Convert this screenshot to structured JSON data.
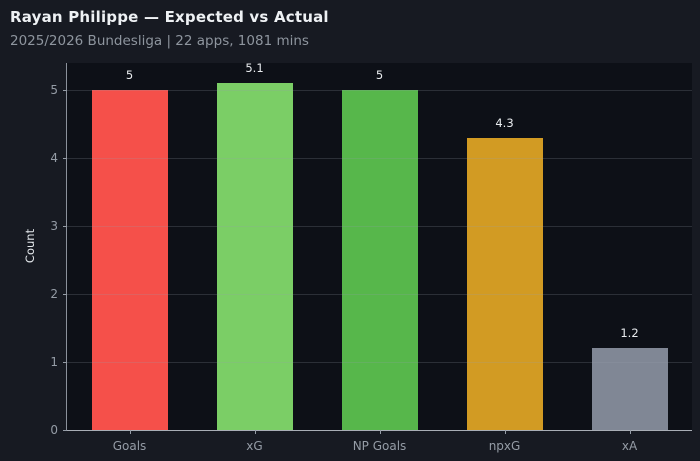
{
  "header": {
    "title": "Rayan Philippe — Expected vs Actual",
    "subtitle": "2025/2026 Bundesliga | 22 apps, 1081 mins"
  },
  "chart_data": {
    "type": "bar",
    "title": "Rayan Philippe — Expected vs Actual",
    "subtitle": "2025/2026 Bundesliga | 22 apps, 1081 mins",
    "categories": [
      "Goals",
      "xG",
      "NP Goals",
      "npxG",
      "xA"
    ],
    "values": [
      5,
      5.1,
      5,
      4.3,
      1.2
    ],
    "value_labels": [
      "5",
      "5.1",
      "5",
      "4.3",
      "1.2"
    ],
    "bar_colors": [
      "#f5504a",
      "#7bce66",
      "#57b74b",
      "#d29b23",
      "#808795"
    ],
    "xlabel": "",
    "ylabel": "Count",
    "yticks": [
      0,
      1,
      2,
      3,
      4,
      5
    ],
    "ylim": [
      0,
      5.4
    ],
    "grid": "horizontal, drawn over bars, subtle",
    "legend": "none",
    "colors": {
      "page_background": "#171a22",
      "plot_background": "#0d1017",
      "title_text": "#eef1f4",
      "subtitle_text": "#8e959e",
      "tick_text": "#959ca6",
      "value_label_text": "#e9ecef"
    }
  }
}
